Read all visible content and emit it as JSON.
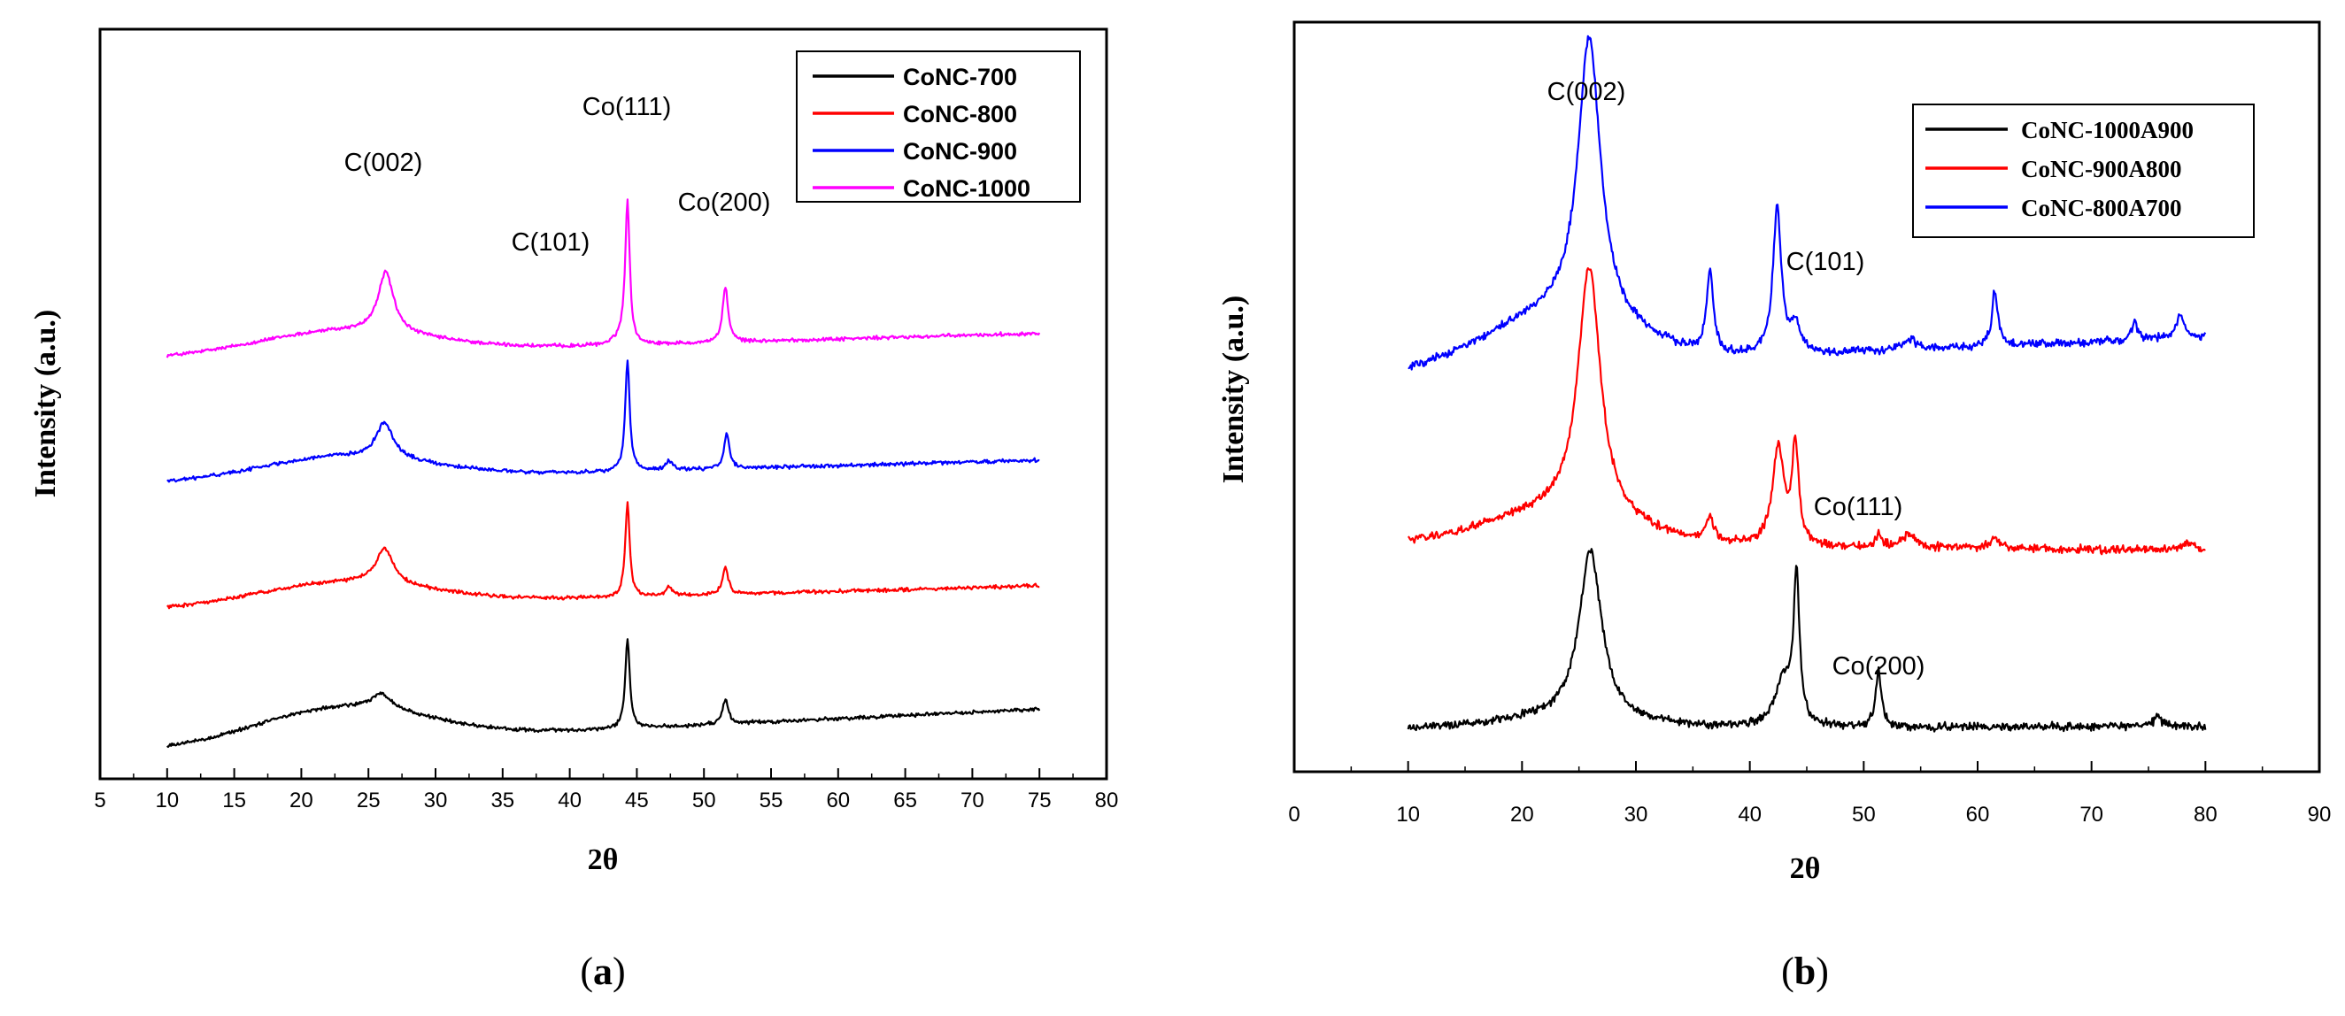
{
  "chart_data": [
    {
      "type": "line",
      "panel": "a",
      "caption_letter": "a",
      "xlabel": "2θ",
      "ylabel": "Intensity (a.u.)",
      "xlim": [
        5,
        80
      ],
      "xticks": [
        5,
        10,
        15,
        20,
        25,
        30,
        35,
        40,
        45,
        50,
        55,
        60,
        65,
        70,
        75,
        80
      ],
      "y_ticks_shown": false,
      "grid": false,
      "legend_position": "top-right",
      "legend_frame": true,
      "annotations": [
        {
          "text": "C(002)",
          "x": 26.3
        },
        {
          "text": "C(101)",
          "x": 38.8
        },
        {
          "text": "Co(111)",
          "x": 44.3
        },
        {
          "text": "Co(200)",
          "x": 51.8
        }
      ],
      "series": [
        {
          "name": "CoNC-1000",
          "color": "#ff00ff",
          "offset": 3.0,
          "base_start": 0.12,
          "base_end": 0.32,
          "hump_height": 0.18,
          "noise": 0.018,
          "peaks": [
            {
              "x": 26.3,
              "h": 0.48,
              "w": 0.7
            },
            {
              "x": 43.8,
              "h": 0.05,
              "w": 0.6
            },
            {
              "x": 44.3,
              "h": 1.13,
              "w": 0.2
            },
            {
              "x": 51.6,
              "h": 0.44,
              "w": 0.25
            }
          ]
        },
        {
          "name": "CoNC-900",
          "color": "#0000ff",
          "offset": 2.0,
          "base_start": 0.12,
          "base_end": 0.31,
          "hump_height": 0.18,
          "noise": 0.018,
          "peaks": [
            {
              "x": 26.2,
              "h": 0.28,
              "w": 0.8
            },
            {
              "x": 44.3,
              "h": 0.88,
              "w": 0.2
            },
            {
              "x": 47.4,
              "h": 0.07,
              "w": 0.3
            },
            {
              "x": 51.7,
              "h": 0.27,
              "w": 0.25
            }
          ]
        },
        {
          "name": "CoNC-800",
          "color": "#ff0000",
          "offset": 1.0,
          "base_start": 0.12,
          "base_end": 0.31,
          "hump_height": 0.18,
          "noise": 0.018,
          "peaks": [
            {
              "x": 26.2,
              "h": 0.28,
              "w": 0.8
            },
            {
              "x": 44.3,
              "h": 0.75,
              "w": 0.2
            },
            {
              "x": 47.4,
              "h": 0.07,
              "w": 0.3
            },
            {
              "x": 51.6,
              "h": 0.22,
              "w": 0.25
            }
          ]
        },
        {
          "name": "CoNC-700",
          "color": "#000000",
          "offset": 0.0,
          "base_start": 0.0,
          "base_end": 0.33,
          "hump_height": 0.28,
          "noise": 0.018,
          "peaks": [
            {
              "x": 26.0,
              "h": 0.12,
              "w": 0.9
            },
            {
              "x": 44.3,
              "h": 0.72,
              "w": 0.2
            },
            {
              "x": 51.6,
              "h": 0.2,
              "w": 0.25
            }
          ]
        }
      ]
    },
    {
      "type": "line",
      "panel": "b",
      "caption_letter": "b",
      "xlabel": "2θ",
      "ylabel": "Intensity (a.u.)",
      "xlim": [
        0,
        90
      ],
      "xticks": [
        0,
        10,
        20,
        30,
        40,
        50,
        60,
        70,
        80,
        90
      ],
      "y_ticks_shown": false,
      "grid": false,
      "legend_position": "top-right",
      "legend_frame": true,
      "annotations": [
        {
          "text": "C(002)",
          "x": 25.8
        },
        {
          "text": "C(101)",
          "x": 42.0
        },
        {
          "text": "Co(111)",
          "x": 44.0
        },
        {
          "text": "Co(200)",
          "x": 51.3
        }
      ],
      "series": [
        {
          "name": "CoNC-1000A900",
          "color": "#000000",
          "offset": 0.0,
          "base_start": 0.05,
          "base_end": 0.08,
          "hump_height": 0.08,
          "noise": 0.04,
          "peaks": [
            {
              "x": 26.0,
              "h": 1.35,
              "w": 1.2
            },
            {
              "x": 43.0,
              "h": 0.38,
              "w": 0.9
            },
            {
              "x": 44.1,
              "h": 1.15,
              "w": 0.3
            },
            {
              "x": 51.3,
              "h": 0.45,
              "w": 0.3
            },
            {
              "x": 75.8,
              "h": 0.08,
              "w": 0.4
            }
          ]
        },
        {
          "name": "CoNC-900A800",
          "color": "#ff0000",
          "offset": 1.4,
          "base_start": 0.12,
          "base_end": 0.08,
          "hump_height": 0.25,
          "noise": 0.04,
          "peaks": [
            {
              "x": 25.9,
              "h": 2.0,
              "w": 1.2
            },
            {
              "x": 36.5,
              "h": 0.2,
              "w": 0.4
            },
            {
              "x": 42.5,
              "h": 0.78,
              "w": 0.6
            },
            {
              "x": 44.0,
              "h": 0.78,
              "w": 0.35
            },
            {
              "x": 51.3,
              "h": 0.1,
              "w": 0.3
            },
            {
              "x": 54.0,
              "h": 0.1,
              "w": 0.8
            },
            {
              "x": 61.5,
              "h": 0.08,
              "w": 0.5
            },
            {
              "x": 78.5,
              "h": 0.06,
              "w": 0.6
            }
          ]
        },
        {
          "name": "CoNC-800A700",
          "color": "#0000ff",
          "offset": 2.8,
          "base_start": 0.08,
          "base_end": 0.38,
          "hump_height": 0.4,
          "noise": 0.04,
          "peaks": [
            {
              "x": 25.9,
              "h": 2.25,
              "w": 1.2
            },
            {
              "x": 36.5,
              "h": 0.65,
              "w": 0.35
            },
            {
              "x": 42.4,
              "h": 1.15,
              "w": 0.45
            },
            {
              "x": 44.0,
              "h": 0.22,
              "w": 0.5
            },
            {
              "x": 54.0,
              "h": 0.08,
              "w": 0.8
            },
            {
              "x": 61.5,
              "h": 0.45,
              "w": 0.3
            },
            {
              "x": 73.8,
              "h": 0.14,
              "w": 0.3
            },
            {
              "x": 77.8,
              "h": 0.18,
              "w": 0.4
            }
          ]
        }
      ]
    }
  ]
}
